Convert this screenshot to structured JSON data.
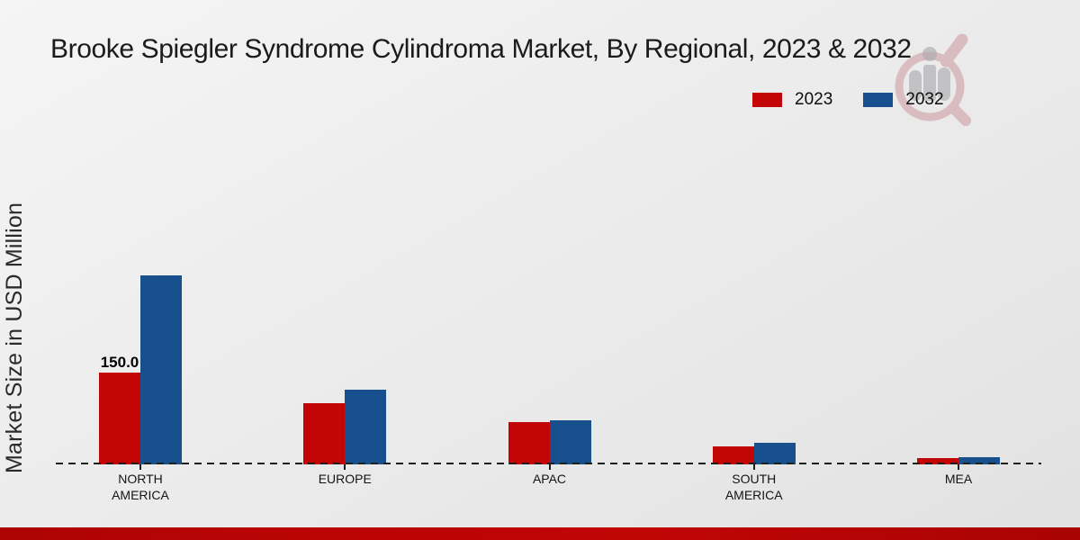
{
  "title": "Brooke Spiegler Syndrome Cylindroma Market, By Regional, 2023 & 2032",
  "y_axis": {
    "label": "Market Size in USD Million"
  },
  "legend": {
    "position": "top-right",
    "items": [
      {
        "label": "2023",
        "color": "#c40505"
      },
      {
        "label": "2032",
        "color": "#17508c"
      }
    ]
  },
  "watermark": {
    "name": "market-research-future-logo",
    "style": "ghosted magnifier over gray chart-person silhouette"
  },
  "footer": {
    "accent_color": "#b90404"
  },
  "chart_data": {
    "type": "bar",
    "title": "Brooke Spiegler Syndrome Cylindroma Market, By Regional, 2023 & 2032",
    "xlabel": "",
    "ylabel": "Market Size in USD Million",
    "units": "USD Million",
    "categories": [
      "NORTH AMERICA",
      "EUROPE",
      "APAC",
      "SOUTH AMERICA",
      "MEA"
    ],
    "series": [
      {
        "name": "2023",
        "color": "#c40505",
        "values": [
          150.0,
          100.0,
          70.0,
          30.0,
          10.0
        ]
      },
      {
        "name": "2032",
        "color": "#17508c",
        "values": [
          310.0,
          122.0,
          73.0,
          36.0,
          12.0
        ]
      }
    ],
    "data_labels": [
      {
        "category_index": 0,
        "series_index": 0,
        "text": "150.0"
      }
    ],
    "ylim": [
      0,
      340
    ],
    "grid": false,
    "y_ticks_visible": false,
    "legend_position": "top-right",
    "baseline": "dashed"
  }
}
